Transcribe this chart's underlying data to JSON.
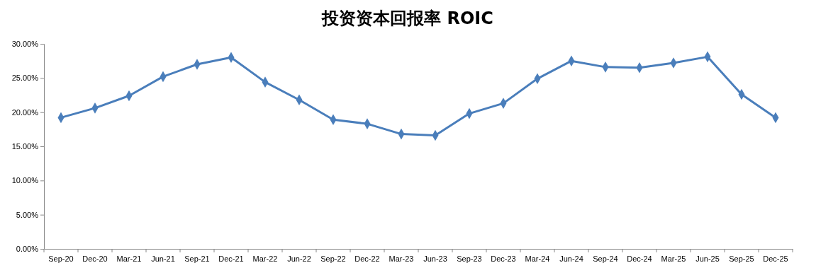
{
  "chart_data": {
    "type": "line",
    "title": "投资资本回报率 ROIC",
    "categories": [
      "Sep-20",
      "Dec-20",
      "Mar-21",
      "Jun-21",
      "Sep-21",
      "Dec-21",
      "Mar-22",
      "Jun-22",
      "Sep-22",
      "Dec-22",
      "Mar-23",
      "Jun-23",
      "Sep-23",
      "Dec-23",
      "Mar-24",
      "Jun-24",
      "Sep-24",
      "Dec-24",
      "Mar-25",
      "Jun-25",
      "Sep-25",
      "Dec-25"
    ],
    "series": [
      {
        "color": "#4a7ebb",
        "values": [
          19.2,
          20.6,
          22.4,
          25.2,
          27.0,
          28.0,
          24.4,
          21.8,
          18.9,
          18.3,
          16.8,
          16.6,
          19.8,
          21.3,
          24.9,
          27.5,
          26.6,
          26.5,
          27.2,
          28.1,
          22.6,
          19.2
        ]
      }
    ],
    "ylim": [
      0,
      30
    ],
    "yticks": [
      {
        "value": 0,
        "label": "0.00%"
      },
      {
        "value": 5,
        "label": "5.00%"
      },
      {
        "value": 10,
        "label": "10.00%"
      },
      {
        "value": 15,
        "label": "15.00%"
      },
      {
        "value": 20,
        "label": "20.00%"
      },
      {
        "value": 25,
        "label": "25.00%"
      },
      {
        "value": 30,
        "label": "30.00%"
      }
    ],
    "grid": false,
    "legend": false,
    "marker": "diamond",
    "line_style": "solid"
  }
}
